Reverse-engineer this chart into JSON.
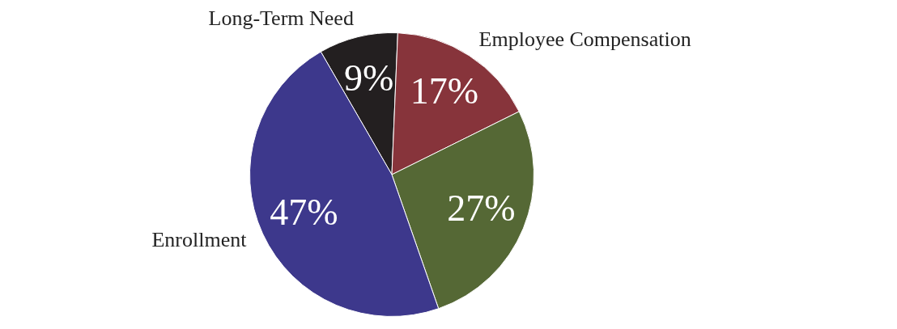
{
  "chart_data": {
    "type": "pie",
    "categories": [
      "Long-Term Need",
      "Employee Compensation",
      null,
      "Enrollment"
    ],
    "values": [
      9,
      17,
      27,
      47
    ],
    "colors": [
      "#231f20",
      "#87343b",
      "#556835",
      "#3d388c"
    ],
    "value_labels": [
      "9%",
      "17%",
      "27%",
      "47%"
    ],
    "legend": false
  }
}
